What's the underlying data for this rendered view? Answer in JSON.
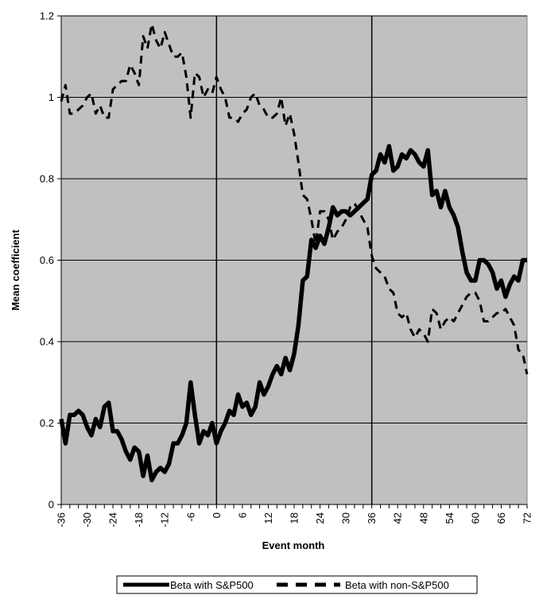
{
  "chart_data": {
    "type": "line",
    "title": "",
    "xlabel": "Event month",
    "ylabel": "Mean coefficient",
    "xlim": [
      -36,
      72
    ],
    "ylim": [
      0,
      1.2
    ],
    "x_ticks": [
      -36,
      -30,
      -24,
      -18,
      -12,
      -6,
      0,
      6,
      12,
      18,
      24,
      30,
      36,
      42,
      48,
      54,
      60,
      66,
      72
    ],
    "x_tick_labels": [
      "-36",
      "-30",
      "-24",
      "-18",
      "-12",
      "-6",
      "0",
      "6",
      "12",
      "18",
      "24",
      "30",
      "36",
      "42",
      "48",
      "54",
      "60",
      "66",
      "72"
    ],
    "y_ticks": [
      0,
      0.2,
      0.4,
      0.6,
      0.8,
      1,
      1.2
    ],
    "y_tick_labels": [
      "0",
      "0.2",
      "0.4",
      "0.6",
      "0.8",
      "1",
      "1.2"
    ],
    "grid": "horizontal",
    "plot_background": "#c0c0c0",
    "vertical_lines": [
      0,
      36
    ],
    "legend_position": "bottom",
    "series": [
      {
        "name": "Beta with S&P500",
        "style": "solid",
        "color": "#000000",
        "x": [
          -36,
          -35,
          -34,
          -33,
          -32,
          -31,
          -30,
          -29,
          -28,
          -27,
          -26,
          -25,
          -24,
          -23,
          -22,
          -21,
          -20,
          -19,
          -18,
          -17,
          -16,
          -15,
          -14,
          -13,
          -12,
          -11,
          -10,
          -9,
          -8,
          -7,
          -6,
          -5,
          -4,
          -3,
          -2,
          -1,
          0,
          1,
          2,
          3,
          4,
          5,
          6,
          7,
          8,
          9,
          10,
          11,
          12,
          13,
          14,
          15,
          16,
          17,
          18,
          19,
          20,
          21,
          22,
          23,
          24,
          25,
          26,
          27,
          28,
          29,
          30,
          31,
          32,
          33,
          34,
          35,
          36,
          37,
          38,
          39,
          40,
          41,
          42,
          43,
          44,
          45,
          46,
          47,
          48,
          49,
          50,
          51,
          52,
          53,
          54,
          55,
          56,
          57,
          58,
          59,
          60,
          61,
          62,
          63,
          64,
          65,
          66,
          67,
          68,
          69,
          70,
          71,
          72
        ],
        "values": [
          0.21,
          0.15,
          0.22,
          0.22,
          0.23,
          0.22,
          0.19,
          0.17,
          0.21,
          0.19,
          0.24,
          0.25,
          0.18,
          0.18,
          0.16,
          0.13,
          0.11,
          0.14,
          0.13,
          0.07,
          0.12,
          0.06,
          0.08,
          0.09,
          0.08,
          0.1,
          0.15,
          0.15,
          0.17,
          0.2,
          0.3,
          0.22,
          0.15,
          0.18,
          0.17,
          0.2,
          0.15,
          0.18,
          0.2,
          0.23,
          0.22,
          0.27,
          0.24,
          0.25,
          0.22,
          0.24,
          0.3,
          0.27,
          0.29,
          0.32,
          0.34,
          0.32,
          0.36,
          0.33,
          0.37,
          0.44,
          0.55,
          0.56,
          0.65,
          0.63,
          0.66,
          0.64,
          0.68,
          0.73,
          0.71,
          0.72,
          0.72,
          0.71,
          0.72,
          0.73,
          0.74,
          0.75,
          0.81,
          0.82,
          0.86,
          0.84,
          0.88,
          0.82,
          0.83,
          0.86,
          0.85,
          0.87,
          0.86,
          0.84,
          0.83,
          0.87,
          0.76,
          0.77,
          0.73,
          0.77,
          0.73,
          0.71,
          0.68,
          0.62,
          0.57,
          0.55,
          0.55,
          0.6,
          0.6,
          0.59,
          0.57,
          0.53,
          0.55,
          0.51,
          0.54,
          0.56,
          0.55,
          0.6,
          0.6
        ]
      },
      {
        "name": "Beta with non-S&P500",
        "style": "dashed",
        "color": "#000000",
        "x": [
          -36,
          -35,
          -34,
          -33,
          -32,
          -31,
          -30,
          -29,
          -28,
          -27,
          -26,
          -25,
          -24,
          -23,
          -22,
          -21,
          -20,
          -19,
          -18,
          -17,
          -16,
          -15,
          -14,
          -13,
          -12,
          -11,
          -10,
          -9,
          -8,
          -7,
          -6,
          -5,
          -4,
          -3,
          -2,
          -1,
          0,
          1,
          2,
          3,
          4,
          5,
          6,
          7,
          8,
          9,
          10,
          11,
          12,
          13,
          14,
          15,
          16,
          17,
          18,
          19,
          20,
          21,
          22,
          23,
          24,
          25,
          26,
          27,
          28,
          29,
          30,
          31,
          32,
          33,
          34,
          35,
          36,
          37,
          38,
          39,
          40,
          41,
          42,
          43,
          44,
          45,
          46,
          47,
          48,
          49,
          50,
          51,
          52,
          53,
          54,
          55,
          56,
          57,
          58,
          59,
          60,
          61,
          62,
          63,
          64,
          65,
          66,
          67,
          68,
          69,
          70,
          71,
          72
        ],
        "values": [
          0.99,
          1.03,
          0.96,
          0.96,
          0.97,
          0.98,
          1.0,
          1.01,
          0.96,
          0.98,
          0.95,
          0.95,
          1.02,
          1.03,
          1.04,
          1.04,
          1.08,
          1.06,
          1.03,
          1.15,
          1.12,
          1.18,
          1.14,
          1.12,
          1.16,
          1.13,
          1.1,
          1.1,
          1.11,
          1.05,
          0.95,
          1.06,
          1.05,
          1.0,
          1.02,
          1.01,
          1.05,
          1.02,
          1.0,
          0.95,
          0.95,
          0.94,
          0.96,
          0.97,
          1.0,
          1.01,
          0.98,
          0.97,
          0.95,
          0.95,
          0.96,
          1.0,
          0.93,
          0.96,
          0.91,
          0.84,
          0.76,
          0.75,
          0.7,
          0.64,
          0.72,
          0.72,
          0.7,
          0.65,
          0.67,
          0.68,
          0.7,
          0.73,
          0.74,
          0.72,
          0.7,
          0.68,
          0.61,
          0.58,
          0.57,
          0.56,
          0.53,
          0.52,
          0.47,
          0.46,
          0.47,
          0.43,
          0.41,
          0.43,
          0.42,
          0.4,
          0.48,
          0.47,
          0.43,
          0.45,
          0.46,
          0.45,
          0.47,
          0.49,
          0.51,
          0.52,
          0.52,
          0.5,
          0.45,
          0.45,
          0.46,
          0.47,
          0.47,
          0.48,
          0.46,
          0.44,
          0.38,
          0.37,
          0.32
        ]
      }
    ]
  }
}
